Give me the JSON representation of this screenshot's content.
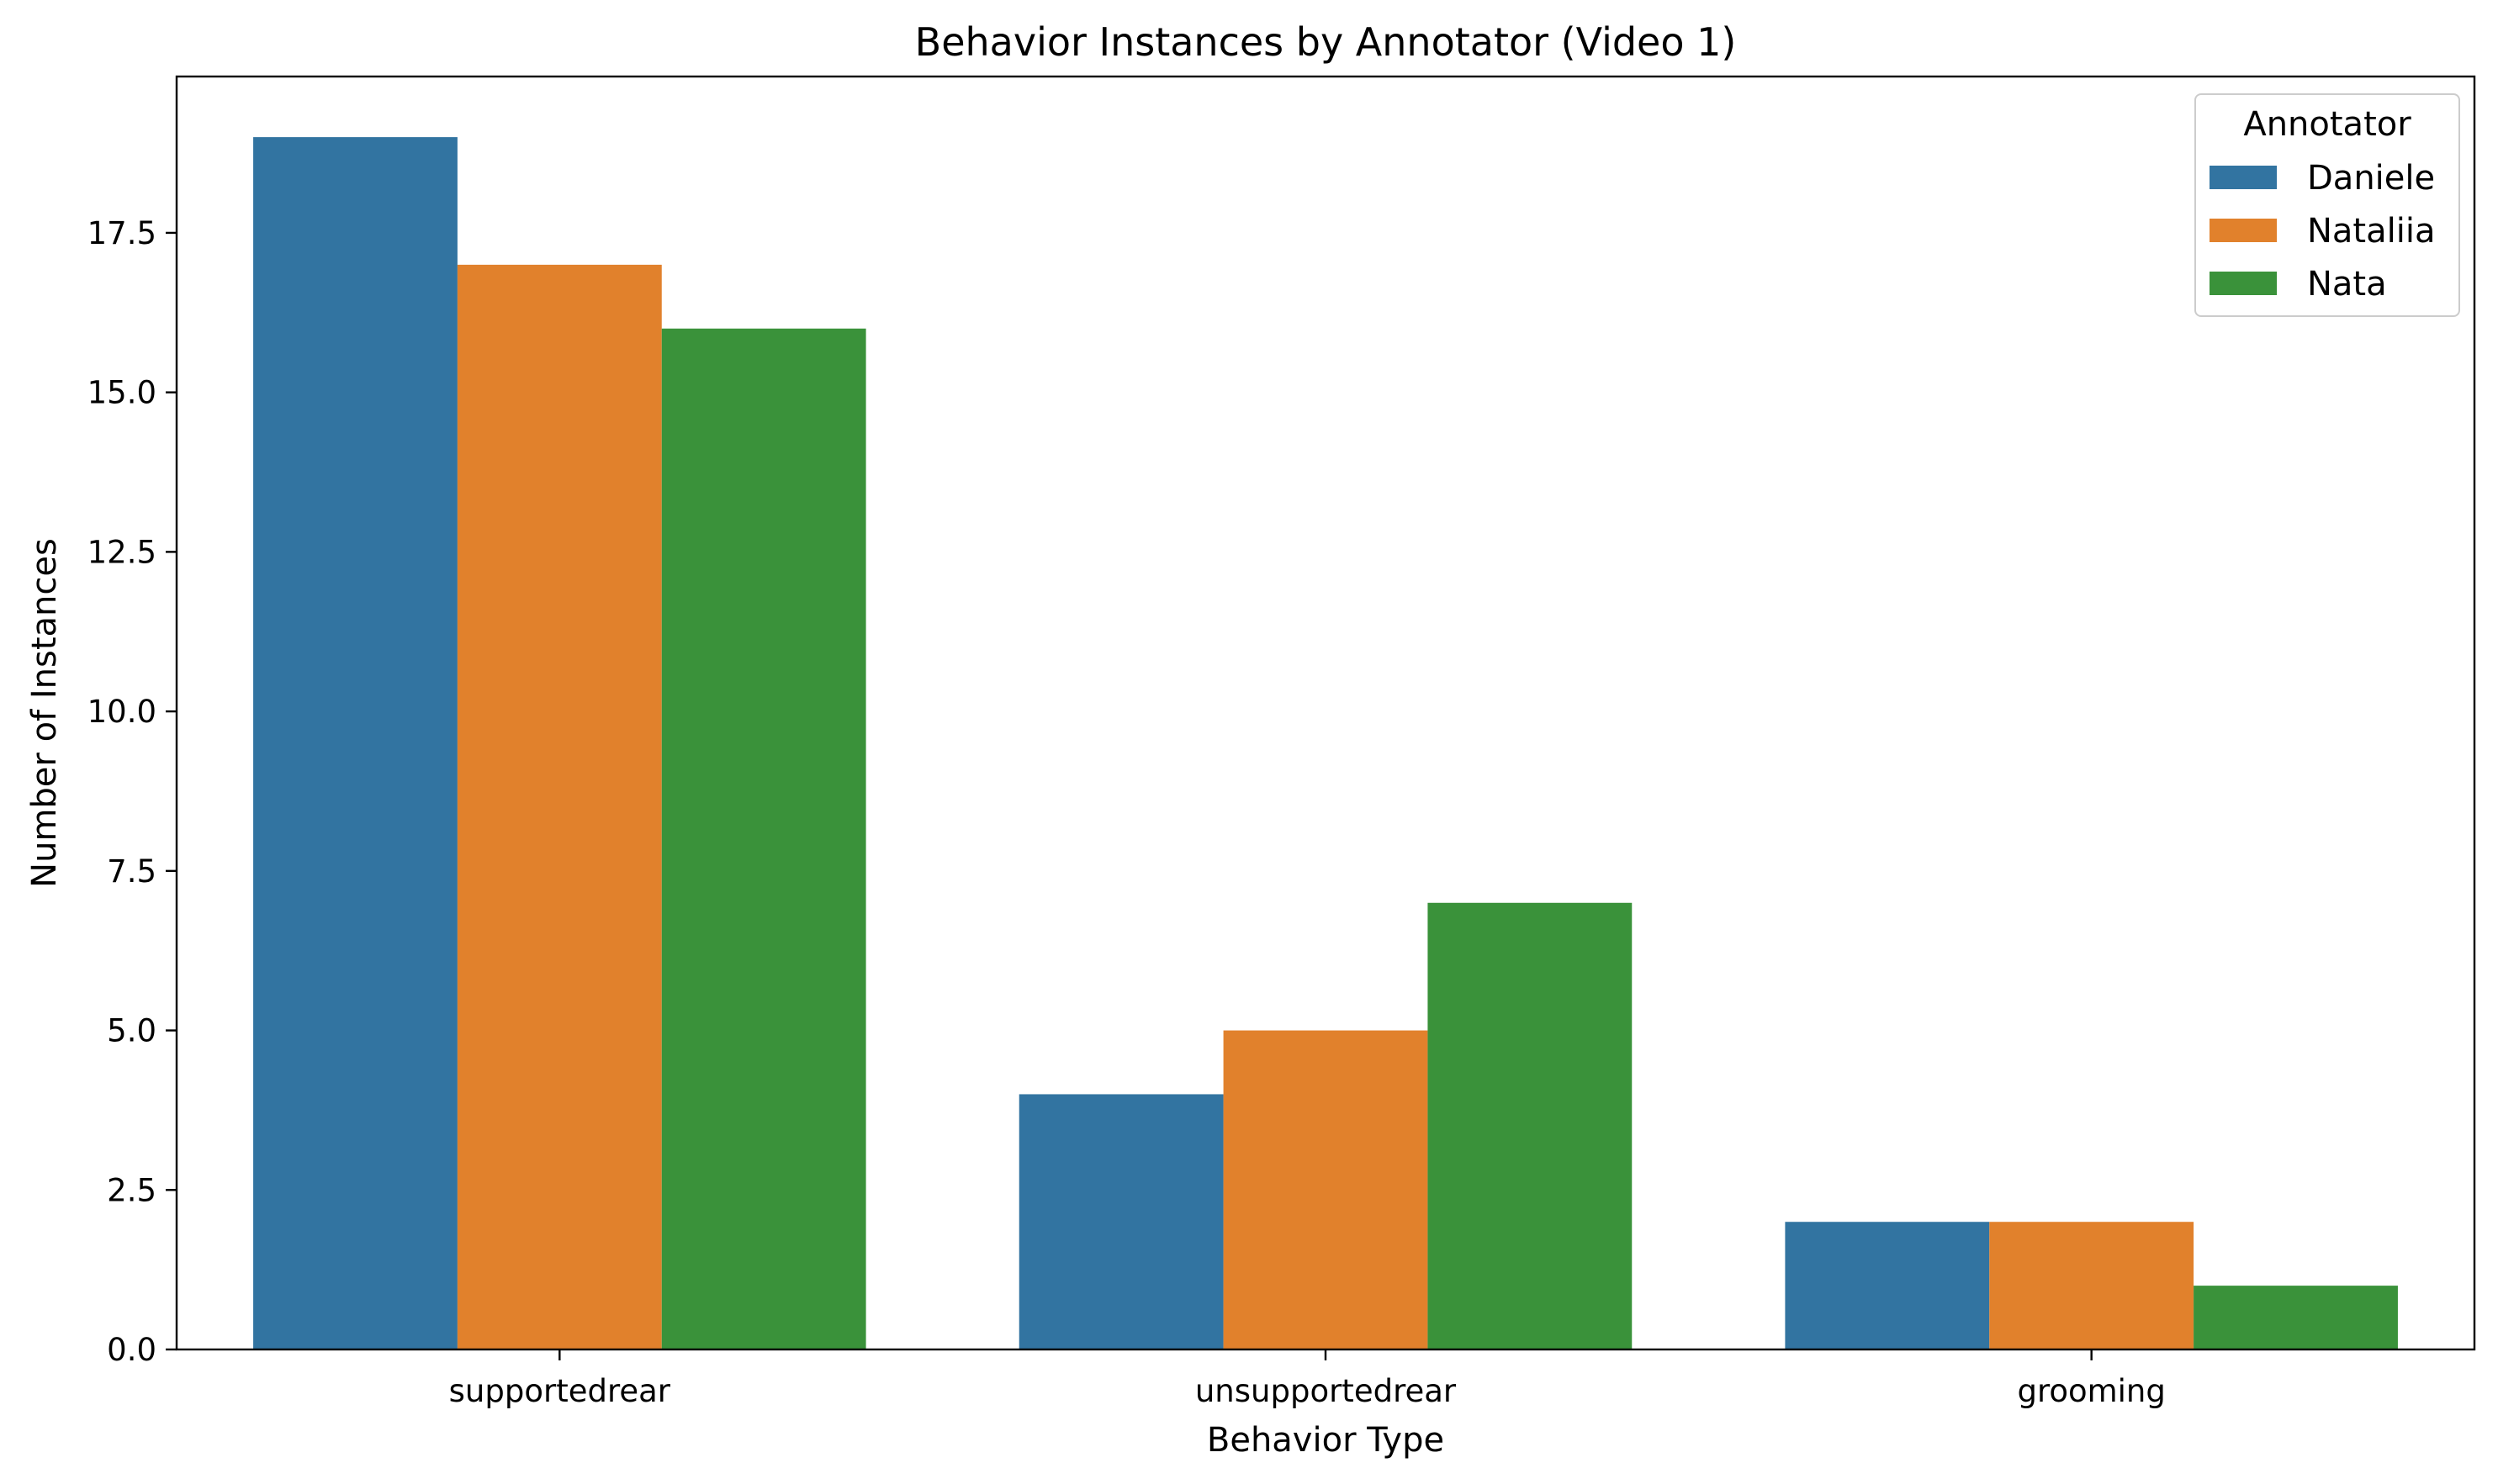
{
  "chart_data": {
    "type": "bar",
    "title": "Behavior Instances by Annotator (Video 1)",
    "xlabel": "Behavior Type",
    "ylabel": "Number of Instances",
    "categories": [
      "supportedrear",
      "unsupportedrear",
      "grooming"
    ],
    "series": [
      {
        "name": "Daniele",
        "values": [
          19,
          4,
          2
        ],
        "color": "#3274a1"
      },
      {
        "name": "Nataliia",
        "values": [
          17,
          5,
          2
        ],
        "color": "#e1812c"
      },
      {
        "name": "Nata",
        "values": [
          16,
          7,
          1
        ],
        "color": "#3a923a"
      }
    ],
    "ylim": [
      0,
      19.95
    ],
    "yticks": [
      0.0,
      2.5,
      5.0,
      7.5,
      10.0,
      12.5,
      15.0,
      17.5
    ],
    "ytick_labels": [
      "0.0",
      "2.5",
      "5.0",
      "7.5",
      "10.0",
      "12.5",
      "15.0",
      "17.5"
    ],
    "grid": false,
    "legend": {
      "title": "Annotator",
      "placement": "top-right"
    }
  }
}
